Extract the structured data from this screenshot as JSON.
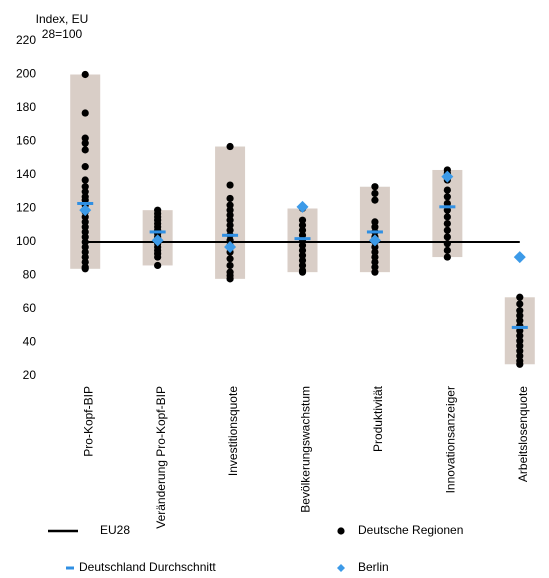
{
  "chart_data": {
    "type": "strip",
    "y_label": "Index, EU 28=100",
    "categories": [
      "Pro-Kopf-BIP",
      "Veränderung Pro-Kopf-BIP",
      "Investitionsquote",
      "Bevölkerungswachstum",
      "Produktivität",
      "Innovationsanzeiger",
      "Arbeitslosenquote"
    ],
    "ylim": [
      20,
      220
    ],
    "yticks": [
      20,
      40,
      60,
      80,
      100,
      120,
      140,
      160,
      180,
      200,
      220
    ],
    "range_color": "#d9cec7",
    "series": [
      {
        "name": "EU28",
        "marker": "line",
        "color": "#000000",
        "values": [
          100,
          100,
          100,
          100,
          100,
          100,
          100
        ]
      },
      {
        "name": "Deutsche Regionen",
        "marker": "dot",
        "color": "#000000",
        "values": [
          [
            200,
            177,
            162,
            159,
            155,
            145,
            137,
            133,
            130,
            127,
            125,
            122,
            118,
            115,
            112,
            109,
            106,
            103,
            100,
            97,
            94,
            91,
            88,
            85,
            84
          ],
          [
            119,
            117,
            115,
            113,
            111,
            109,
            107,
            105,
            103,
            101,
            99,
            97,
            95,
            93,
            91,
            86
          ],
          [
            157,
            134,
            126,
            122,
            119,
            116,
            113,
            110,
            107,
            104,
            101,
            98,
            94,
            90,
            86,
            82,
            80,
            78
          ],
          [
            120,
            113,
            110,
            107,
            104,
            101,
            98,
            95,
            92,
            89,
            86,
            83,
            82
          ],
          [
            133,
            129,
            125,
            112,
            109,
            106,
            103,
            100,
            97,
            94,
            91,
            88,
            85,
            82
          ],
          [
            143,
            141,
            137,
            131,
            127,
            123,
            119,
            115,
            111,
            107,
            103,
            99,
            95,
            91
          ],
          [
            67,
            63,
            59,
            56,
            53,
            50,
            47,
            44,
            41,
            38,
            35,
            32,
            29,
            27
          ]
        ]
      },
      {
        "name": "Deutschland Durchschnitt",
        "marker": "dash",
        "color": "#2f8fe3",
        "values": [
          123,
          106,
          104,
          102,
          106,
          121,
          49
        ]
      },
      {
        "name": "Berlin",
        "marker": "diamond",
        "color": "#3c9ae8",
        "values": [
          119,
          101,
          97,
          121,
          101,
          139,
          91
        ]
      }
    ]
  }
}
